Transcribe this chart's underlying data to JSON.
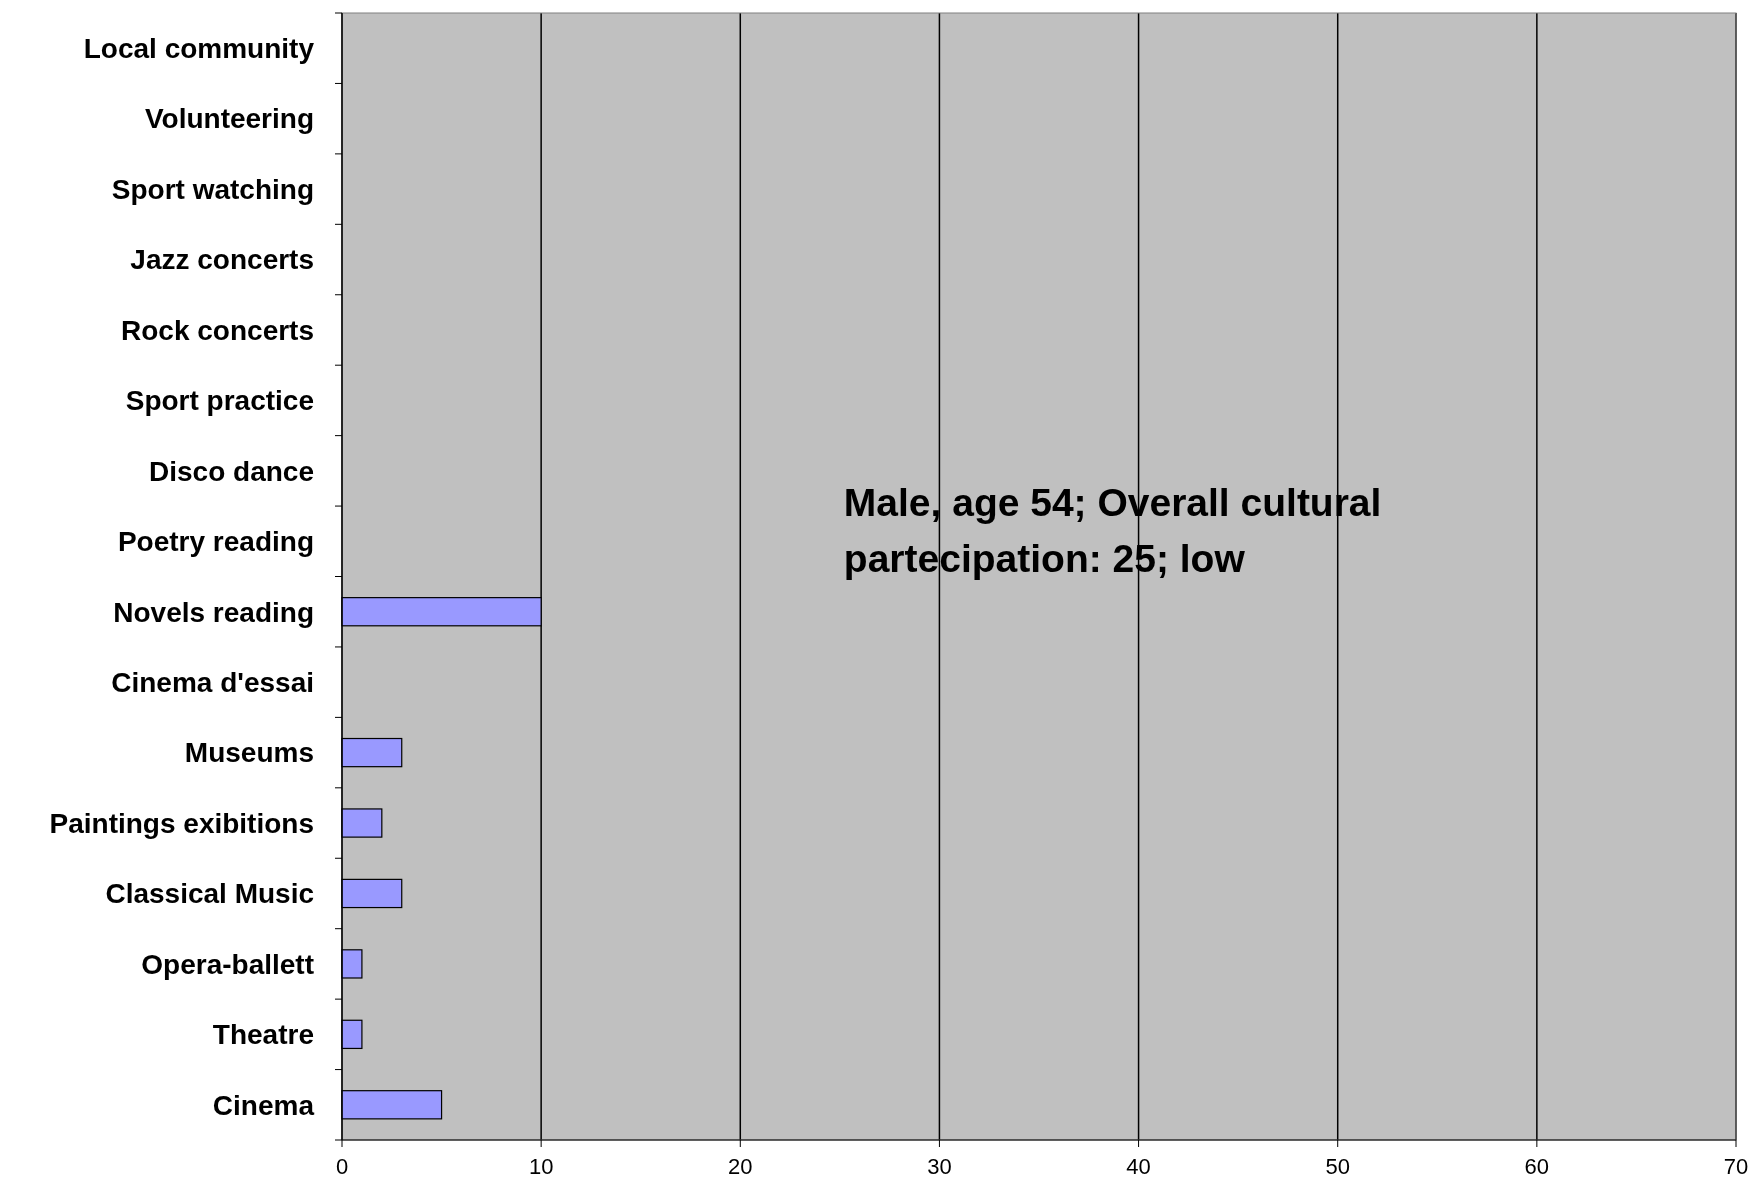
{
  "chart_data": {
    "type": "bar",
    "orientation": "horizontal",
    "categories": [
      "Local community",
      "Volunteering",
      "Sport watching",
      "Jazz concerts",
      "Rock concerts",
      "Sport practice",
      "Disco dance",
      "Poetry reading",
      "Novels reading",
      "Cinema d'essai",
      "Museums",
      "Paintings exibitions",
      "Classical Music",
      "Opera-ballett",
      "Theatre",
      "Cinema"
    ],
    "values": [
      0,
      0,
      0,
      0,
      0,
      0,
      0,
      0,
      10,
      0,
      3,
      2,
      3,
      1,
      1,
      5
    ],
    "color": "#9999ff",
    "xlim": [
      0,
      70
    ],
    "xticks": [
      0,
      10,
      20,
      30,
      40,
      50,
      60,
      70
    ],
    "grid": "x",
    "annotations": [
      "Male, age 54; Overall cultural partecipation: 25; low"
    ]
  }
}
